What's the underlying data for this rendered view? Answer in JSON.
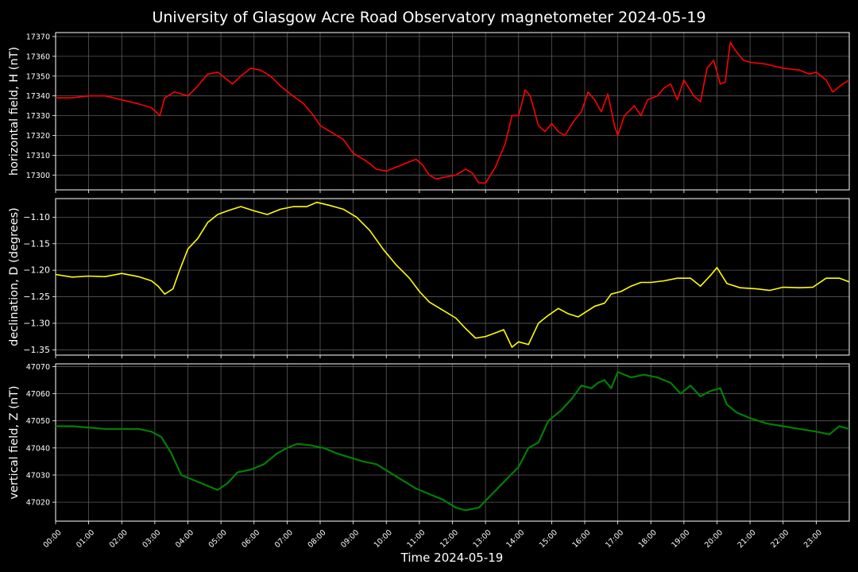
{
  "chart_data": {
    "title": "University of Glasgow Acre Road Observatory magnetometer 2024-05-19",
    "xlabel": "Time 2024-05-19",
    "x_ticks": [
      "00:00",
      "01:00",
      "02:00",
      "03:00",
      "04:00",
      "05:00",
      "06:00",
      "07:00",
      "08:00",
      "09:00",
      "10:00",
      "11:00",
      "12:00",
      "13:00",
      "14:00",
      "15:00",
      "16:00",
      "17:00",
      "18:00",
      "19:00",
      "20:00",
      "21:00",
      "22:00",
      "23:00"
    ],
    "x_range_hours": [
      0,
      24
    ],
    "grid": true,
    "background": "#000000",
    "panels": [
      {
        "type": "line",
        "ylabel": "horizontal field, H (nT)",
        "color": "#ff0000",
        "ylim": [
          17292.5,
          17372
        ],
        "yticks": [
          "17300",
          "17310",
          "17320",
          "17330",
          "17340",
          "17350",
          "17360",
          "17370"
        ],
        "ytick_values": [
          17300,
          17310,
          17320,
          17330,
          17340,
          17350,
          17360,
          17370
        ],
        "points": [
          [
            0.0,
            17339
          ],
          [
            0.5,
            17339
          ],
          [
            1.0,
            17340
          ],
          [
            1.5,
            17340
          ],
          [
            2.0,
            17338
          ],
          [
            2.5,
            17336
          ],
          [
            2.9,
            17334
          ],
          [
            3.15,
            17330
          ],
          [
            3.3,
            17339
          ],
          [
            3.6,
            17342
          ],
          [
            4.0,
            17340
          ],
          [
            4.3,
            17345
          ],
          [
            4.6,
            17351
          ],
          [
            4.9,
            17352
          ],
          [
            5.2,
            17348
          ],
          [
            5.35,
            17346
          ],
          [
            5.6,
            17350
          ],
          [
            5.9,
            17354
          ],
          [
            6.2,
            17353
          ],
          [
            6.5,
            17350
          ],
          [
            6.8,
            17345
          ],
          [
            7.1,
            17341
          ],
          [
            7.5,
            17336
          ],
          [
            7.8,
            17330
          ],
          [
            8.0,
            17325
          ],
          [
            8.4,
            17321
          ],
          [
            8.7,
            17318
          ],
          [
            9.0,
            17311
          ],
          [
            9.4,
            17307
          ],
          [
            9.7,
            17303
          ],
          [
            10.0,
            17302
          ],
          [
            10.3,
            17304
          ],
          [
            10.6,
            17306
          ],
          [
            10.9,
            17308
          ],
          [
            11.1,
            17305
          ],
          [
            11.3,
            17300
          ],
          [
            11.5,
            17298
          ],
          [
            11.8,
            17299
          ],
          [
            12.1,
            17300
          ],
          [
            12.4,
            17303
          ],
          [
            12.6,
            17301
          ],
          [
            12.8,
            17296
          ],
          [
            13.0,
            17296
          ],
          [
            13.3,
            17304
          ],
          [
            13.6,
            17316
          ],
          [
            13.8,
            17330
          ],
          [
            14.0,
            17330
          ],
          [
            14.2,
            17343
          ],
          [
            14.35,
            17340
          ],
          [
            14.6,
            17325
          ],
          [
            14.8,
            17322
          ],
          [
            15.0,
            17326
          ],
          [
            15.2,
            17322
          ],
          [
            15.4,
            17320
          ],
          [
            15.7,
            17328
          ],
          [
            15.9,
            17332
          ],
          [
            16.1,
            17342
          ],
          [
            16.3,
            17338
          ],
          [
            16.5,
            17332
          ],
          [
            16.7,
            17341
          ],
          [
            16.9,
            17325
          ],
          [
            17.0,
            17320
          ],
          [
            17.2,
            17330
          ],
          [
            17.5,
            17335
          ],
          [
            17.7,
            17330
          ],
          [
            17.9,
            17338
          ],
          [
            18.2,
            17340
          ],
          [
            18.4,
            17344
          ],
          [
            18.6,
            17346
          ],
          [
            18.8,
            17338
          ],
          [
            19.0,
            17348
          ],
          [
            19.3,
            17340
          ],
          [
            19.5,
            17337
          ],
          [
            19.7,
            17354
          ],
          [
            19.9,
            17358
          ],
          [
            20.1,
            17346
          ],
          [
            20.25,
            17347
          ],
          [
            20.4,
            17367
          ],
          [
            20.6,
            17362
          ],
          [
            20.8,
            17358
          ],
          [
            21.0,
            17357
          ],
          [
            21.5,
            17356
          ],
          [
            22.0,
            17354
          ],
          [
            22.5,
            17353
          ],
          [
            22.8,
            17351
          ],
          [
            23.0,
            17352
          ],
          [
            23.3,
            17348
          ],
          [
            23.5,
            17342
          ],
          [
            23.8,
            17346
          ],
          [
            24.0,
            17348
          ]
        ]
      },
      {
        "type": "line",
        "ylabel": "declination, D (degrees)",
        "color": "#ffff00",
        "ylim": [
          -1.36,
          -1.065
        ],
        "yticks": [
          "−1.10",
          "−1.15",
          "−1.20",
          "−1.25",
          "−1.30",
          "−1.35"
        ],
        "ytick_values": [
          -1.1,
          -1.15,
          -1.2,
          -1.25,
          -1.3,
          -1.35
        ],
        "points": [
          [
            0.0,
            -1.208
          ],
          [
            0.5,
            -1.213
          ],
          [
            1.0,
            -1.211
          ],
          [
            1.5,
            -1.212
          ],
          [
            2.0,
            -1.206
          ],
          [
            2.5,
            -1.212
          ],
          [
            2.9,
            -1.22
          ],
          [
            3.1,
            -1.23
          ],
          [
            3.3,
            -1.245
          ],
          [
            3.55,
            -1.235
          ],
          [
            3.75,
            -1.2
          ],
          [
            4.0,
            -1.16
          ],
          [
            4.3,
            -1.14
          ],
          [
            4.6,
            -1.11
          ],
          [
            4.9,
            -1.095
          ],
          [
            5.2,
            -1.088
          ],
          [
            5.6,
            -1.08
          ],
          [
            6.0,
            -1.088
          ],
          [
            6.4,
            -1.095
          ],
          [
            6.8,
            -1.085
          ],
          [
            7.2,
            -1.08
          ],
          [
            7.6,
            -1.08
          ],
          [
            7.9,
            -1.072
          ],
          [
            8.3,
            -1.078
          ],
          [
            8.7,
            -1.085
          ],
          [
            9.1,
            -1.1
          ],
          [
            9.5,
            -1.125
          ],
          [
            9.9,
            -1.16
          ],
          [
            10.3,
            -1.19
          ],
          [
            10.7,
            -1.215
          ],
          [
            11.0,
            -1.24
          ],
          [
            11.3,
            -1.26
          ],
          [
            11.7,
            -1.275
          ],
          [
            12.1,
            -1.29
          ],
          [
            12.4,
            -1.31
          ],
          [
            12.7,
            -1.328
          ],
          [
            13.0,
            -1.325
          ],
          [
            13.3,
            -1.318
          ],
          [
            13.55,
            -1.312
          ],
          [
            13.8,
            -1.345
          ],
          [
            14.0,
            -1.335
          ],
          [
            14.3,
            -1.34
          ],
          [
            14.6,
            -1.3
          ],
          [
            14.9,
            -1.285
          ],
          [
            15.2,
            -1.272
          ],
          [
            15.5,
            -1.282
          ],
          [
            15.8,
            -1.288
          ],
          [
            16.0,
            -1.28
          ],
          [
            16.3,
            -1.268
          ],
          [
            16.6,
            -1.262
          ],
          [
            16.8,
            -1.245
          ],
          [
            17.1,
            -1.24
          ],
          [
            17.4,
            -1.23
          ],
          [
            17.7,
            -1.223
          ],
          [
            18.0,
            -1.223
          ],
          [
            18.4,
            -1.22
          ],
          [
            18.8,
            -1.215
          ],
          [
            19.2,
            -1.215
          ],
          [
            19.5,
            -1.23
          ],
          [
            19.8,
            -1.21
          ],
          [
            20.0,
            -1.195
          ],
          [
            20.3,
            -1.225
          ],
          [
            20.7,
            -1.233
          ],
          [
            21.2,
            -1.235
          ],
          [
            21.6,
            -1.238
          ],
          [
            22.0,
            -1.232
          ],
          [
            22.5,
            -1.233
          ],
          [
            22.9,
            -1.232
          ],
          [
            23.3,
            -1.215
          ],
          [
            23.7,
            -1.215
          ],
          [
            24.0,
            -1.222
          ]
        ]
      },
      {
        "type": "line",
        "ylabel": "vertical field, Z (nT)",
        "color": "#008000",
        "ylim": [
          47013,
          47071
        ],
        "yticks": [
          "47020",
          "47030",
          "47040",
          "47050",
          "47060",
          "47070"
        ],
        "ytick_values": [
          47020,
          47030,
          47040,
          47050,
          47060,
          47070
        ],
        "points": [
          [
            0.0,
            47048
          ],
          [
            0.5,
            47048
          ],
          [
            1.0,
            47047.5
          ],
          [
            1.5,
            47047
          ],
          [
            2.0,
            47047
          ],
          [
            2.5,
            47047
          ],
          [
            2.9,
            47046
          ],
          [
            3.2,
            47044
          ],
          [
            3.5,
            47038
          ],
          [
            3.8,
            47030
          ],
          [
            4.2,
            47028
          ],
          [
            4.6,
            47026
          ],
          [
            4.9,
            47024.5
          ],
          [
            5.2,
            47027
          ],
          [
            5.5,
            47031
          ],
          [
            5.9,
            47032
          ],
          [
            6.3,
            47034
          ],
          [
            6.7,
            47038
          ],
          [
            7.0,
            47040
          ],
          [
            7.3,
            47041.5
          ],
          [
            7.7,
            47041
          ],
          [
            8.1,
            47040
          ],
          [
            8.5,
            47038
          ],
          [
            8.9,
            47036.5
          ],
          [
            9.3,
            47035
          ],
          [
            9.7,
            47034
          ],
          [
            10.1,
            47031
          ],
          [
            10.5,
            47028
          ],
          [
            10.9,
            47025
          ],
          [
            11.3,
            47023
          ],
          [
            11.7,
            47021
          ],
          [
            12.1,
            47018
          ],
          [
            12.4,
            47017
          ],
          [
            12.8,
            47018
          ],
          [
            13.2,
            47023
          ],
          [
            13.6,
            47028
          ],
          [
            14.0,
            47033
          ],
          [
            14.3,
            47040
          ],
          [
            14.6,
            47042
          ],
          [
            14.9,
            47050
          ],
          [
            15.3,
            47054
          ],
          [
            15.6,
            47058
          ],
          [
            15.9,
            47063
          ],
          [
            16.2,
            47062
          ],
          [
            16.4,
            47064
          ],
          [
            16.6,
            47065
          ],
          [
            16.8,
            47062
          ],
          [
            17.0,
            47068
          ],
          [
            17.4,
            47066
          ],
          [
            17.8,
            47067
          ],
          [
            18.2,
            47066
          ],
          [
            18.6,
            47064
          ],
          [
            18.9,
            47060
          ],
          [
            19.2,
            47063
          ],
          [
            19.5,
            47059
          ],
          [
            19.8,
            47061
          ],
          [
            20.1,
            47062
          ],
          [
            20.3,
            47056
          ],
          [
            20.6,
            47053
          ],
          [
            21.0,
            47051
          ],
          [
            21.5,
            47049
          ],
          [
            22.0,
            47048
          ],
          [
            22.5,
            47047
          ],
          [
            23.0,
            47046
          ],
          [
            23.4,
            47045
          ],
          [
            23.7,
            47048
          ],
          [
            24.0,
            47047
          ]
        ]
      }
    ]
  }
}
